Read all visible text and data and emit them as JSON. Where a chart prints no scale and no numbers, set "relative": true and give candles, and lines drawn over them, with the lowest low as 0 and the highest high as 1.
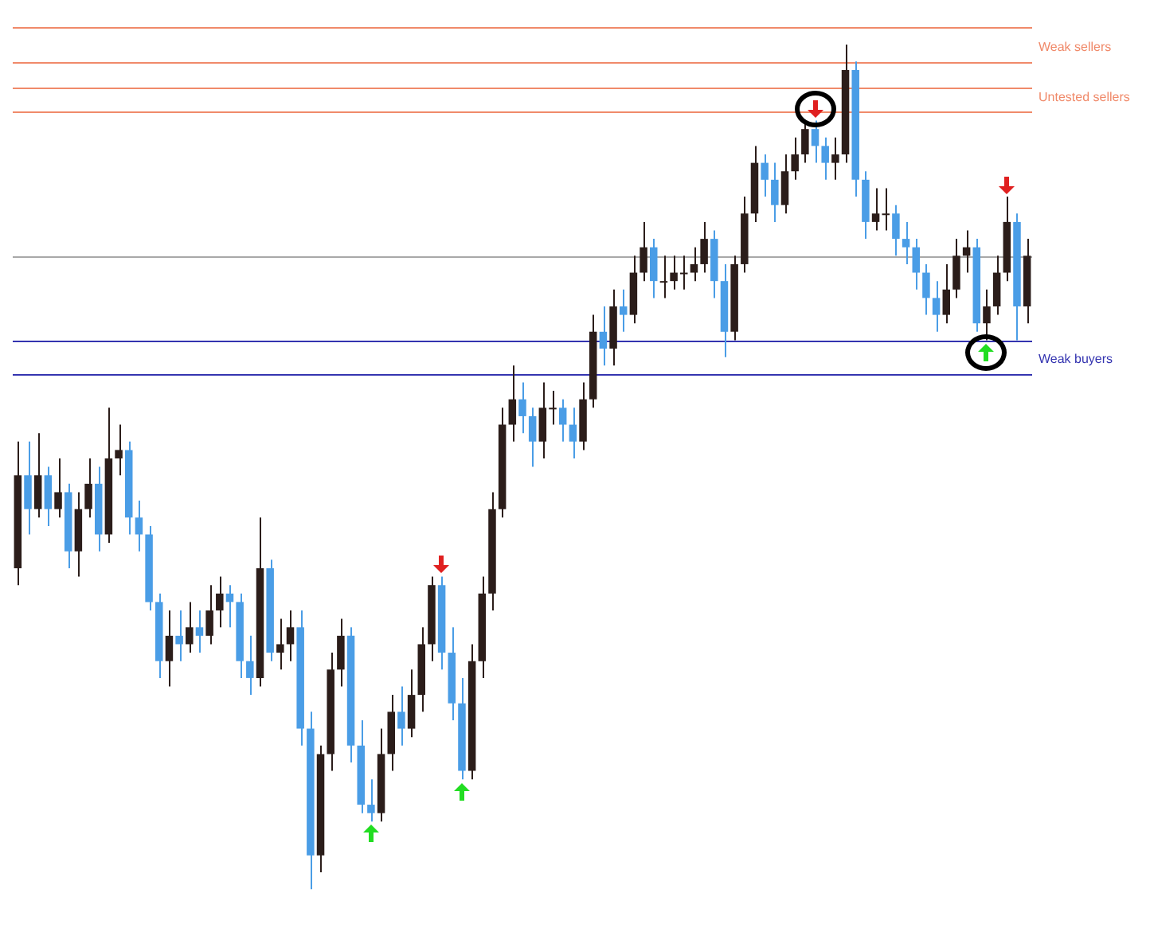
{
  "chart_data": {
    "type": "candlestick",
    "relative": true,
    "tick_labels": false,
    "legend": false,
    "categories": [
      null,
      null,
      null,
      null,
      null,
      null,
      null,
      null,
      null,
      null,
      null,
      null,
      null,
      null,
      null,
      null,
      null,
      null,
      null,
      null,
      null,
      null,
      null,
      null,
      null,
      null,
      null,
      null,
      null,
      null,
      null,
      null,
      null,
      null,
      null,
      null,
      null,
      null,
      null,
      null,
      null,
      null,
      null,
      null,
      null,
      null,
      null,
      null,
      null,
      null,
      null,
      null,
      null,
      null,
      null,
      null,
      null,
      null,
      null,
      null,
      null,
      null,
      null,
      null,
      null,
      null,
      null,
      null,
      null,
      null,
      null,
      null,
      null,
      null,
      null,
      null,
      null,
      null,
      null,
      null,
      null,
      null,
      null,
      null,
      null,
      null,
      null,
      null,
      null,
      null,
      null,
      null,
      null,
      null,
      null,
      null,
      null,
      null,
      null,
      null,
      null
    ],
    "ohlc": [
      [
        0.38,
        0.53,
        0.36,
        0.49
      ],
      [
        0.49,
        0.53,
        0.42,
        0.45
      ],
      [
        0.45,
        0.54,
        0.44,
        0.49
      ],
      [
        0.49,
        0.5,
        0.43,
        0.45
      ],
      [
        0.45,
        0.51,
        0.44,
        0.47
      ],
      [
        0.47,
        0.48,
        0.38,
        0.4
      ],
      [
        0.4,
        0.47,
        0.37,
        0.45
      ],
      [
        0.45,
        0.51,
        0.44,
        0.48
      ],
      [
        0.48,
        0.5,
        0.4,
        0.42
      ],
      [
        0.42,
        0.57,
        0.41,
        0.51
      ],
      [
        0.51,
        0.55,
        0.49,
        0.52
      ],
      [
        0.52,
        0.53,
        0.42,
        0.44
      ],
      [
        0.44,
        0.46,
        0.4,
        0.42
      ],
      [
        0.42,
        0.43,
        0.33,
        0.34
      ],
      [
        0.34,
        0.35,
        0.25,
        0.27
      ],
      [
        0.27,
        0.33,
        0.24,
        0.3
      ],
      [
        0.3,
        0.33,
        0.27,
        0.29
      ],
      [
        0.29,
        0.34,
        0.28,
        0.31
      ],
      [
        0.31,
        0.33,
        0.28,
        0.3
      ],
      [
        0.3,
        0.36,
        0.29,
        0.33
      ],
      [
        0.33,
        0.37,
        0.31,
        0.35
      ],
      [
        0.35,
        0.36,
        0.31,
        0.34
      ],
      [
        0.34,
        0.35,
        0.25,
        0.27
      ],
      [
        0.27,
        0.3,
        0.23,
        0.25
      ],
      [
        0.25,
        0.44,
        0.24,
        0.38
      ],
      [
        0.38,
        0.39,
        0.27,
        0.28
      ],
      [
        0.28,
        0.32,
        0.26,
        0.29
      ],
      [
        0.29,
        0.33,
        0.27,
        0.31
      ],
      [
        0.31,
        0.33,
        0.17,
        0.19
      ],
      [
        0.19,
        0.21,
        0.0,
        0.04
      ],
      [
        0.04,
        0.17,
        0.02,
        0.16
      ],
      [
        0.16,
        0.28,
        0.14,
        0.26
      ],
      [
        0.26,
        0.32,
        0.24,
        0.3
      ],
      [
        0.3,
        0.31,
        0.15,
        0.17
      ],
      [
        0.17,
        0.2,
        0.09,
        0.1
      ],
      [
        0.1,
        0.13,
        0.08,
        0.09
      ],
      [
        0.09,
        0.19,
        0.08,
        0.16
      ],
      [
        0.16,
        0.23,
        0.14,
        0.21
      ],
      [
        0.21,
        0.24,
        0.17,
        0.19
      ],
      [
        0.19,
        0.26,
        0.18,
        0.23
      ],
      [
        0.23,
        0.31,
        0.21,
        0.29
      ],
      [
        0.29,
        0.37,
        0.27,
        0.36
      ],
      [
        0.36,
        0.37,
        0.26,
        0.28
      ],
      [
        0.28,
        0.31,
        0.2,
        0.22
      ],
      [
        0.22,
        0.25,
        0.13,
        0.14
      ],
      [
        0.14,
        0.29,
        0.13,
        0.27
      ],
      [
        0.27,
        0.37,
        0.25,
        0.35
      ],
      [
        0.35,
        0.47,
        0.33,
        0.45
      ],
      [
        0.45,
        0.57,
        0.44,
        0.55
      ],
      [
        0.55,
        0.62,
        0.53,
        0.58
      ],
      [
        0.58,
        0.6,
        0.54,
        0.56
      ],
      [
        0.56,
        0.57,
        0.5,
        0.53
      ],
      [
        0.53,
        0.6,
        0.51,
        0.57
      ],
      [
        0.57,
        0.59,
        0.55,
        0.57
      ],
      [
        0.57,
        0.58,
        0.53,
        0.55
      ],
      [
        0.55,
        0.57,
        0.51,
        0.53
      ],
      [
        0.53,
        0.6,
        0.52,
        0.58
      ],
      [
        0.58,
        0.68,
        0.57,
        0.66
      ],
      [
        0.66,
        0.69,
        0.62,
        0.64
      ],
      [
        0.64,
        0.71,
        0.62,
        0.69
      ],
      [
        0.69,
        0.71,
        0.66,
        0.68
      ],
      [
        0.68,
        0.75,
        0.67,
        0.73
      ],
      [
        0.73,
        0.79,
        0.72,
        0.76
      ],
      [
        0.76,
        0.77,
        0.7,
        0.72
      ],
      [
        0.72,
        0.75,
        0.7,
        0.72
      ],
      [
        0.72,
        0.75,
        0.71,
        0.73
      ],
      [
        0.73,
        0.75,
        0.71,
        0.73
      ],
      [
        0.73,
        0.76,
        0.72,
        0.74
      ],
      [
        0.74,
        0.79,
        0.73,
        0.77
      ],
      [
        0.77,
        0.78,
        0.7,
        0.72
      ],
      [
        0.72,
        0.74,
        0.63,
        0.66
      ],
      [
        0.66,
        0.75,
        0.65,
        0.74
      ],
      [
        0.74,
        0.82,
        0.73,
        0.8
      ],
      [
        0.8,
        0.88,
        0.79,
        0.86
      ],
      [
        0.86,
        0.87,
        0.82,
        0.84
      ],
      [
        0.84,
        0.86,
        0.79,
        0.81
      ],
      [
        0.81,
        0.87,
        0.8,
        0.85
      ],
      [
        0.85,
        0.89,
        0.84,
        0.87
      ],
      [
        0.87,
        0.91,
        0.86,
        0.9
      ],
      [
        0.9,
        0.91,
        0.86,
        0.88
      ],
      [
        0.88,
        0.89,
        0.84,
        0.86
      ],
      [
        0.86,
        0.89,
        0.84,
        0.87
      ],
      [
        0.87,
        1.0,
        0.86,
        0.97
      ],
      [
        0.97,
        0.98,
        0.82,
        0.84
      ],
      [
        0.84,
        0.85,
        0.77,
        0.79
      ],
      [
        0.79,
        0.83,
        0.78,
        0.8
      ],
      [
        0.8,
        0.83,
        0.78,
        0.8
      ],
      [
        0.8,
        0.81,
        0.75,
        0.77
      ],
      [
        0.77,
        0.79,
        0.74,
        0.76
      ],
      [
        0.76,
        0.77,
        0.71,
        0.73
      ],
      [
        0.73,
        0.74,
        0.68,
        0.7
      ],
      [
        0.7,
        0.72,
        0.66,
        0.68
      ],
      [
        0.68,
        0.74,
        0.67,
        0.71
      ],
      [
        0.71,
        0.77,
        0.7,
        0.75
      ],
      [
        0.75,
        0.78,
        0.73,
        0.76
      ],
      [
        0.76,
        0.77,
        0.66,
        0.67
      ],
      [
        0.67,
        0.71,
        0.65,
        0.69
      ],
      [
        0.69,
        0.75,
        0.68,
        0.73
      ],
      [
        0.73,
        0.82,
        0.72,
        0.79
      ],
      [
        0.79,
        0.8,
        0.65,
        0.69
      ],
      [
        0.69,
        0.77,
        0.67,
        0.75
      ]
    ],
    "colors": [
      "#2b1d1a",
      "#4a9de6",
      "#2b1d1a",
      "#4a9de6",
      "#2b1d1a",
      "#4a9de6",
      "#2b1d1a",
      "#2b1d1a",
      "#4a9de6",
      "#2b1d1a",
      "#2b1d1a",
      "#4a9de6",
      "#4a9de6",
      "#4a9de6",
      "#4a9de6",
      "#2b1d1a",
      "#4a9de6",
      "#2b1d1a",
      "#4a9de6",
      "#2b1d1a",
      "#2b1d1a",
      "#4a9de6",
      "#4a9de6",
      "#4a9de6",
      "#2b1d1a",
      "#4a9de6",
      "#2b1d1a",
      "#2b1d1a",
      "#4a9de6",
      "#4a9de6",
      "#2b1d1a",
      "#2b1d1a",
      "#2b1d1a",
      "#4a9de6",
      "#4a9de6",
      "#4a9de6",
      "#2b1d1a",
      "#2b1d1a",
      "#4a9de6",
      "#2b1d1a",
      "#2b1d1a",
      "#2b1d1a",
      "#4a9de6",
      "#4a9de6",
      "#4a9de6",
      "#2b1d1a",
      "#2b1d1a",
      "#2b1d1a",
      "#2b1d1a",
      "#2b1d1a",
      "#4a9de6",
      "#4a9de6",
      "#2b1d1a",
      "#2b1d1a",
      "#4a9de6",
      "#4a9de6",
      "#2b1d1a",
      "#2b1d1a",
      "#4a9de6",
      "#2b1d1a",
      "#4a9de6",
      "#2b1d1a",
      "#2b1d1a",
      "#4a9de6",
      "#2b1d1a",
      "#2b1d1a",
      "#2b1d1a",
      "#2b1d1a",
      "#2b1d1a",
      "#4a9de6",
      "#4a9de6",
      "#2b1d1a",
      "#2b1d1a",
      "#2b1d1a",
      "#4a9de6",
      "#4a9de6",
      "#2b1d1a",
      "#2b1d1a",
      "#2b1d1a",
      "#4a9de6",
      "#4a9de6",
      "#2b1d1a",
      "#2b1d1a",
      "#4a9de6",
      "#4a9de6",
      "#2b1d1a",
      "#2b1d1a",
      "#4a9de6",
      "#4a9de6",
      "#4a9de6",
      "#4a9de6",
      "#4a9de6",
      "#2b1d1a",
      "#2b1d1a",
      "#2b1d1a",
      "#4a9de6",
      "#2b1d1a",
      "#2b1d1a",
      "#2b1d1a",
      "#4a9de6",
      "#2b1d1a"
    ],
    "ref_lines": [
      {
        "axis": "y",
        "value": 0.75,
        "color": "#a8a8a8"
      },
      {
        "axis": "y",
        "value": 1.02,
        "color": "#f08a6a"
      },
      {
        "axis": "y",
        "value": 0.98,
        "label": "Weak sellers",
        "color": "#f08a6a"
      },
      {
        "axis": "y",
        "value": 0.95,
        "color": "#f08a6a"
      },
      {
        "axis": "y",
        "value": 0.92,
        "label": "Untested sellers",
        "color": "#f08a6a"
      },
      {
        "axis": "y",
        "value": 0.65,
        "color": "#3434b0"
      },
      {
        "axis": "y",
        "value": 0.61,
        "label": "Weak buyers",
        "color": "#3434b0"
      }
    ]
  }
}
